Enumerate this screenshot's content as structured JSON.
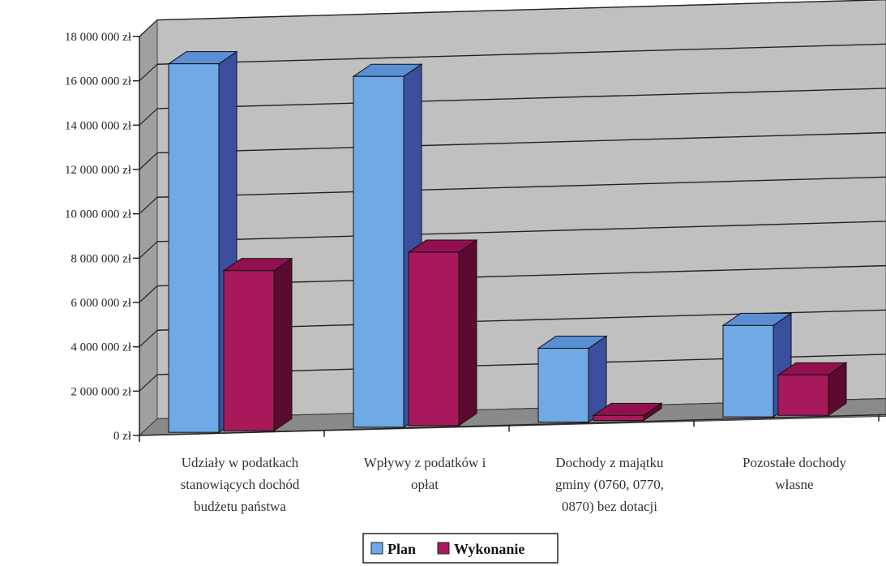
{
  "chart_data": {
    "type": "bar",
    "categories": [
      [
        "Udziały w podatkach",
        "stanowiących dochód",
        "budżetu państwa"
      ],
      [
        "Wpływy z podatków i",
        "opłat"
      ],
      [
        "Dochody z majątku",
        "gminy (0760, 0770,",
        "0870) bez dotacji"
      ],
      [
        "Pozostałe dochody",
        "własne"
      ]
    ],
    "series": [
      {
        "name": "Plan",
        "values": [
          16700000,
          15900000,
          3400000,
          4200000
        ]
      },
      {
        "name": "Wykonanie",
        "values": [
          7300000,
          7900000,
          300000,
          1900000
        ]
      }
    ],
    "ylim": [
      0,
      18000000
    ],
    "ytick_step": 2000000,
    "yticks": [
      "0 zł",
      "2 000 000 zł",
      "4 000 000 zł",
      "6 000 000 zł",
      "8 000 000 zł",
      "10 000 000 zł",
      "12 000 000 zł",
      "14 000 000 zł",
      "16 000 000 zł",
      "18 000 000 zł"
    ],
    "legend_position": "bottom",
    "grid": true,
    "style": "3d-clustered-column"
  },
  "colors": {
    "wall": "#c0c0c0",
    "side_wall": "#a0a0a0",
    "floor": "#8a8a8a",
    "plan_front": "#6fa9e6",
    "plan_top": "#5a8fd4",
    "plan_side": "#3c4f9e",
    "wyk_front": "#a8195c",
    "wyk_top": "#921050",
    "wyk_side": "#5c0a30"
  }
}
